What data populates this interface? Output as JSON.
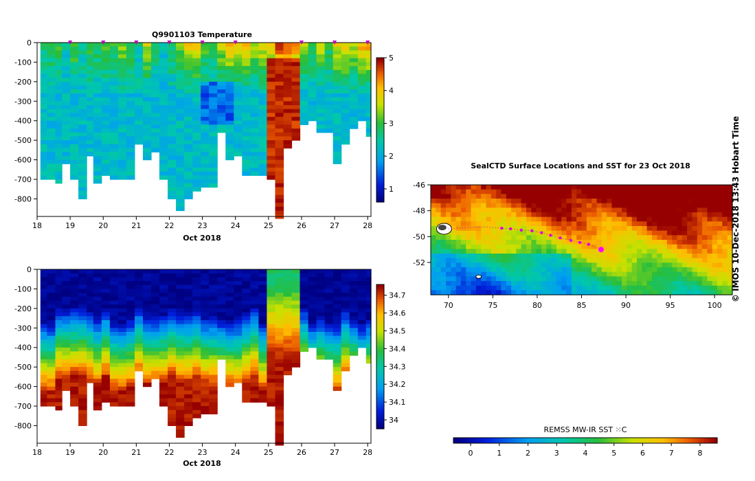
{
  "chart_data": [
    {
      "type": "heatmap",
      "title": "Q9901103  Temperature",
      "xlabel": "Oct 2018",
      "ylabel": "",
      "x_ticks": [
        "18",
        "19",
        "20",
        "21",
        "22",
        "23",
        "24",
        "25",
        "26",
        "27",
        "28"
      ],
      "y_ticks": [
        "0",
        "-100",
        "-200",
        "-300",
        "-400",
        "-500",
        "-600",
        "-700",
        "-800"
      ],
      "xlim": [
        18,
        28.1
      ],
      "ylim": [
        -890,
        0
      ],
      "colorbar": {
        "ticks": [
          "1",
          "2",
          "3",
          "4",
          "5"
        ],
        "range": [
          0.6,
          5.0
        ]
      },
      "profile_times": [
        18.1,
        18.3,
        18.55,
        18.75,
        19.0,
        19.25,
        19.5,
        19.7,
        19.95,
        20.2,
        20.45,
        20.7,
        20.95,
        21.2,
        21.45,
        21.7,
        21.95,
        22.2,
        22.45,
        22.7,
        22.95,
        23.2,
        23.45,
        23.7,
        23.95,
        24.2,
        24.45,
        24.7,
        24.95,
        25.2,
        25.45,
        25.7,
        25.95,
        26.2,
        26.45,
        26.7,
        26.95,
        27.2,
        27.45,
        27.7,
        27.95
      ],
      "profile_max_depths": [
        690,
        690,
        720,
        610,
        690,
        790,
        580,
        710,
        680,
        690,
        690,
        690,
        520,
        590,
        560,
        700,
        790,
        850,
        790,
        760,
        740,
        740,
        460,
        590,
        580,
        680,
        680,
        680,
        700,
        900,
        530,
        500,
        420,
        400,
        450,
        460,
        620,
        520,
        430,
        400,
        480
      ],
      "surface_temperatures": [
        2.7,
        2.9,
        3.0,
        2.4,
        3.2,
        2.6,
        3.0,
        2.9,
        3.3,
        2.9,
        3.4,
        3.1,
        2.5,
        3.6,
        2.7,
        2.3,
        2.9,
        3.4,
        3.9,
        4.0,
        3.1,
        2.7,
        3.5,
        4.0,
        3.8,
        4.0,
        3.6,
        3.8,
        4.1,
        4.9,
        4.7,
        4.3,
        3.4,
        3.1,
        3.6,
        3.0,
        3.8,
        3.9,
        3.5,
        4.2,
        4.3
      ],
      "markers": [
        19.0,
        20.0,
        21.0,
        22.0,
        23.0,
        24.0,
        26.0,
        27.0,
        28.0
      ]
    },
    {
      "type": "heatmap",
      "title": "",
      "xlabel": "Oct 2018",
      "ylabel": "",
      "x_ticks": [
        "18",
        "19",
        "20",
        "21",
        "22",
        "23",
        "24",
        "25",
        "26",
        "27",
        "28"
      ],
      "y_ticks": [
        "0",
        "-100",
        "-200",
        "-300",
        "-400",
        "-500",
        "-600",
        "-700",
        "-800"
      ],
      "xlim": [
        18,
        28.1
      ],
      "ylim": [
        -890,
        0
      ],
      "colorbar": {
        "ticks": [
          "34",
          "34.1",
          "34.2",
          "34.3",
          "34.4",
          "34.5",
          "34.6",
          "34.7"
        ],
        "range": [
          33.95,
          34.76
        ]
      },
      "profile_times": [
        18.1,
        18.3,
        18.55,
        18.75,
        19.0,
        19.25,
        19.5,
        19.7,
        19.95,
        20.2,
        20.45,
        20.7,
        20.95,
        21.2,
        21.45,
        21.7,
        21.95,
        22.2,
        22.45,
        22.7,
        22.95,
        23.2,
        23.45,
        23.7,
        23.95,
        24.2,
        24.45,
        24.7,
        24.95,
        25.2,
        25.45,
        25.7,
        25.95,
        26.2,
        26.45,
        26.7,
        26.95,
        27.2,
        27.45,
        27.7,
        27.95
      ],
      "profile_max_depths": [
        690,
        690,
        720,
        610,
        690,
        790,
        580,
        710,
        680,
        690,
        690,
        690,
        520,
        590,
        560,
        700,
        790,
        850,
        790,
        760,
        740,
        740,
        460,
        590,
        580,
        680,
        680,
        680,
        700,
        900,
        530,
        500,
        420,
        400,
        450,
        460,
        620,
        520,
        430,
        400,
        480
      ]
    },
    {
      "type": "heatmap",
      "title": "SealCTD Surface Locations and SST for 23 Oct 2018",
      "xlabel": "",
      "ylabel": "",
      "x_ticks": [
        "70",
        "75",
        "80",
        "85",
        "90",
        "95",
        "100"
      ],
      "y_ticks": [
        "-46",
        "-48",
        "-50",
        "-52"
      ],
      "xlim": [
        68,
        102
      ],
      "ylim": [
        -54.5,
        -46
      ],
      "colorbar": {
        "label": "REMSS MW-IR SST ⁙C",
        "ticks": [
          "0",
          "1",
          "2",
          "3",
          "4",
          "5",
          "6",
          "7",
          "8"
        ],
        "range": [
          -0.6,
          8.6
        ]
      },
      "track": {
        "lon": [
          70.0,
          72.0,
          74.0,
          76.0,
          77.0,
          78.2,
          79.4,
          80.5,
          81.5,
          82.6,
          83.8,
          84.8,
          85.8,
          87.2
        ],
        "lat": [
          -49.4,
          -49.3,
          -49.25,
          -49.35,
          -49.4,
          -49.5,
          -49.55,
          -49.7,
          -49.9,
          -50.1,
          -50.3,
          -50.45,
          -50.6,
          -51.0
        ]
      },
      "current_position": {
        "lon": 87.2,
        "lat": -51.0
      }
    }
  ],
  "credit": "©  IMOS 10-Dec-2018 13:43 Hobart Time"
}
